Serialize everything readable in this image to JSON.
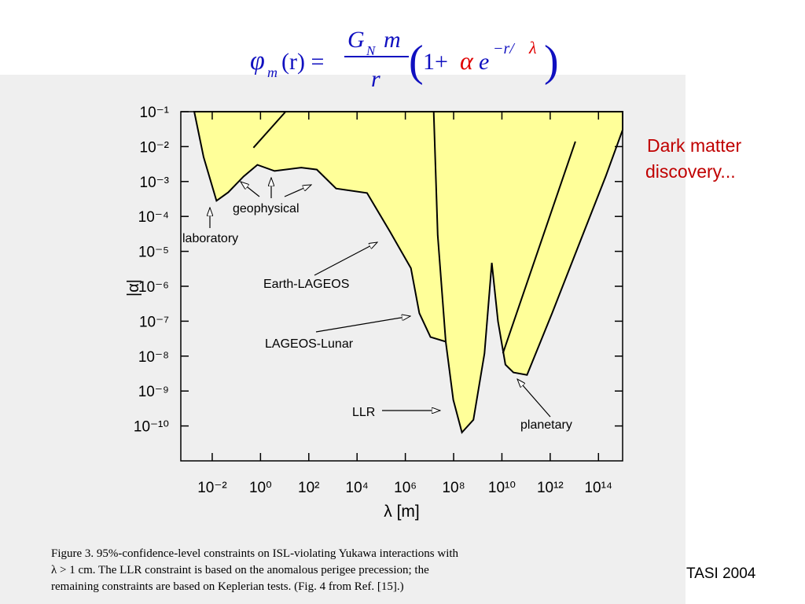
{
  "formula": {
    "phi": "φ",
    "phi_sub": "m",
    "lhs_rest": "(r) =",
    "num_g": "G",
    "num_sub": "N",
    "num_m": "m",
    "den": "r",
    "lparen": "(",
    "one_plus": "1+",
    "alpha": "α",
    "e": "e",
    "exp": "−r/",
    "lambda": "λ",
    "rparen": ")"
  },
  "chart_data": {
    "type": "region",
    "y_label": "|α|",
    "x_label": "λ  [m]",
    "log_x": true,
    "log_y": true,
    "xlim": [
      0.0005,
      1000000000000000.0
    ],
    "ylim": [
      1e-11,
      0.1
    ],
    "xticks": [
      {
        "value": 0.01,
        "label": "10⁻²"
      },
      {
        "value": 1,
        "label": "10⁰"
      },
      {
        "value": 100,
        "label": "10²"
      },
      {
        "value": 10000,
        "label": "10⁴"
      },
      {
        "value": 1000000,
        "label": "10⁶"
      },
      {
        "value": 100000000,
        "label": "10⁸"
      },
      {
        "value": 10000000000,
        "label": "10¹⁰"
      },
      {
        "value": 1000000000000,
        "label": "10¹²"
      },
      {
        "value": 100000000000000,
        "label": "10¹⁴"
      }
    ],
    "yticks": [
      {
        "value": 0.1,
        "label": "10⁻¹"
      },
      {
        "value": 0.01,
        "label": "10⁻²"
      },
      {
        "value": 0.001,
        "label": "10⁻³"
      },
      {
        "value": 0.0001,
        "label": "10⁻⁴"
      },
      {
        "value": 1e-05,
        "label": "10⁻⁵"
      },
      {
        "value": 1e-06,
        "label": "10⁻⁶"
      },
      {
        "value": 1e-07,
        "label": "10⁻⁷"
      },
      {
        "value": 1e-08,
        "label": "10⁻⁸"
      },
      {
        "value": 1e-09,
        "label": "10⁻⁹"
      },
      {
        "value": 1e-10,
        "label": "10⁻¹⁰"
      }
    ],
    "series": [
      {
        "type": "area",
        "color": "#ffff99",
        "x": [
          0.0018,
          0.0044,
          0.015,
          0.046,
          0.2,
          0.74,
          3.8,
          49,
          215,
          1350,
          26000,
          230000,
          1700000,
          3800000,
          11000000,
          47000000,
          97000000,
          220000000,
          660000000,
          1900000000,
          3800000000,
          6900000000,
          14000000000,
          30000000000,
          110000000000,
          1200000000000,
          22000000000000,
          200000000000000,
          1000000000000000.0
        ],
        "values": [
          0.1,
          0.005,
          0.00028,
          0.00049,
          0.0014,
          0.003,
          0.002,
          0.0025,
          0.0022,
          0.00063,
          0.00047,
          3.7e-05,
          3.3e-06,
          1.7e-07,
          3.5e-08,
          2.6e-08,
          5.6e-10,
          6.5e-11,
          1.5e-10,
          1.2e-08,
          4.7e-06,
          9.8e-08,
          5.7e-09,
          3.4e-09,
          2.9e-09,
          1.7e-07,
          2.9e-05,
          0.0014,
          0.03
        ]
      },
      {
        "type": "line",
        "color": "#000000",
        "x": [
          0.51,
          11
        ],
        "values": [
          0.0093,
          0.1
        ]
      },
      {
        "type": "line",
        "color": "#000000",
        "x": [
          15000000,
          22000000,
          47000000
        ],
        "values": [
          0.1,
          2.9e-05,
          2.6e-08
        ]
      },
      {
        "type": "line",
        "color": "#000000",
        "x": [
          11000000000,
          11000000000000
        ],
        "values": [
          1.2e-08,
          0.014
        ]
      }
    ],
    "annotations": [
      "geophysical",
      "laboratory",
      "Earth-LAGEOS",
      "LAGEOS-Lunar",
      "LLR",
      "planetary"
    ]
  },
  "side_note": [
    "Dark matter",
    "discovery..."
  ],
  "caption": [
    "Figure 3.   95%-confidence-level constraints on ISL-violating Yukawa interactions with",
    "λ > 1 cm.  The LLR constraint is based on the anomalous perigee precession; the",
    "remaining constraints are based on Keplerian tests. (Fig. 4 from Ref. [15].)"
  ],
  "footer": "TASI 2004"
}
